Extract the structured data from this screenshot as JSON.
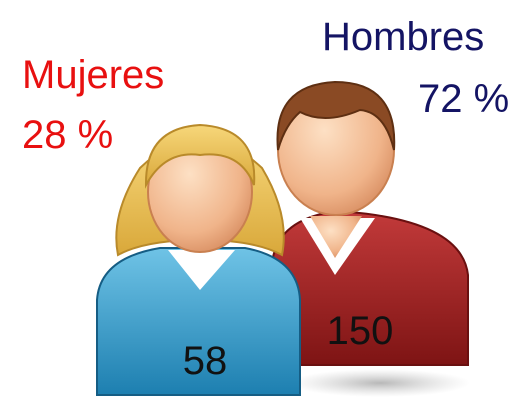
{
  "groups": [
    {
      "label": "Mujeres",
      "percent": "28 %",
      "count": "58"
    },
    {
      "label": "Hombres",
      "percent": "72 %",
      "count": "150"
    }
  ]
}
